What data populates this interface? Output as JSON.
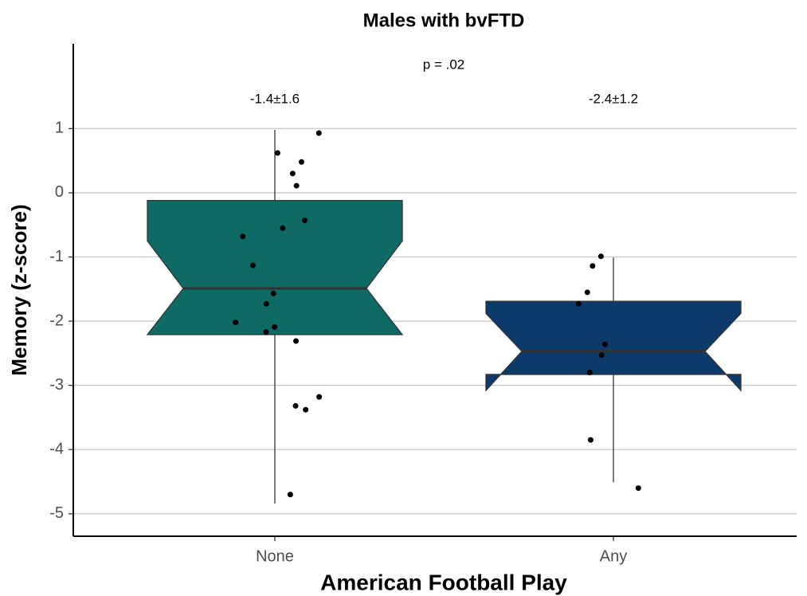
{
  "chart_data": {
    "type": "boxplot",
    "title": "Males with bvFTD",
    "x_label": "American Football Play",
    "y_label": "Memory (z-score)",
    "categories": [
      "None",
      "Any"
    ],
    "colors": [
      "#0e6a64",
      "#0b3a6b"
    ],
    "ylim": [
      -5.35,
      2.32
    ],
    "yticks": [
      -5,
      -4,
      -3,
      -2,
      -1,
      0,
      1
    ],
    "grid": true,
    "boxes": [
      {
        "whisker_low": -4.84,
        "q1": -2.21,
        "median": -1.49,
        "q3": -0.12,
        "whisker_high": 0.98,
        "notch_low": -2.21,
        "notch_high": -0.75,
        "points": [
          0.93,
          0.62,
          0.48,
          0.3,
          0.11,
          -0.43,
          -0.55,
          -0.68,
          -1.13,
          -1.57,
          -1.73,
          -2.02,
          -2.09,
          -2.17,
          -2.31,
          -3.18,
          -3.32,
          -3.38,
          -4.7
        ]
      },
      {
        "whisker_low": -4.51,
        "q1": -2.83,
        "median": -2.47,
        "q3": -1.69,
        "whisker_high": -1.01,
        "notch_low": -3.08,
        "notch_high": -1.88,
        "points": [
          -0.99,
          -1.14,
          -1.55,
          -1.73,
          -2.36,
          -2.53,
          -2.8,
          -3.85,
          -4.6
        ]
      }
    ],
    "group_labels": [
      "-1.4±1.6",
      "-2.4±1.2"
    ],
    "p_label": "p = .02"
  }
}
